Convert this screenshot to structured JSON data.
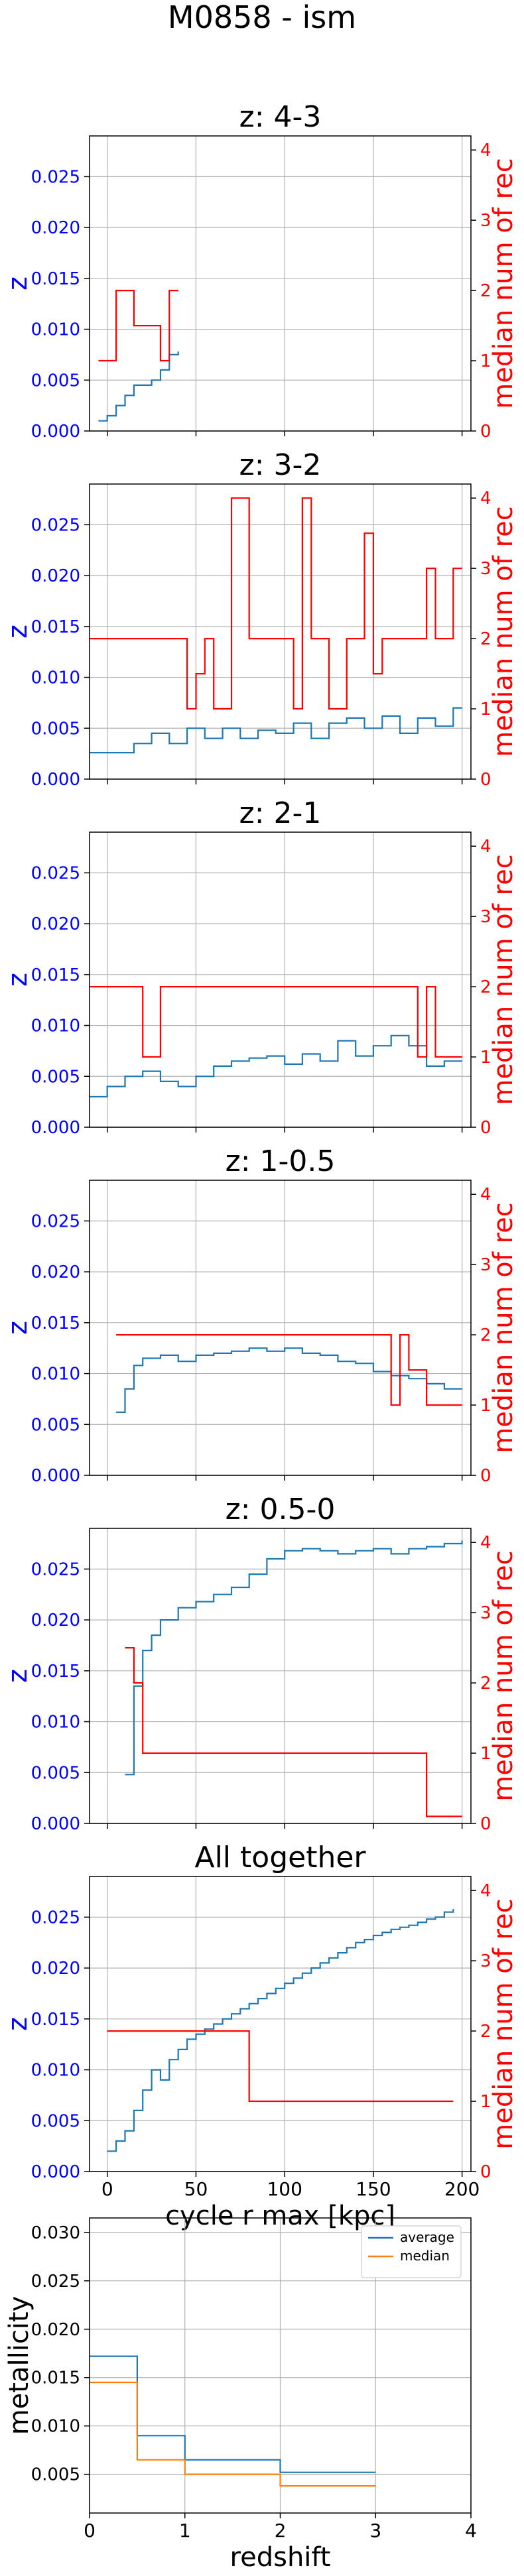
{
  "figure": {
    "title": "M0858 - ism"
  },
  "colors": {
    "left_axis": "#0000ff",
    "right_axis": "#ff0000",
    "average": "#1f77b4",
    "median": "#ff7f0e",
    "rec": "#ff0000",
    "grid": "#b0b0b0"
  },
  "chart_data": [
    {
      "id": "p1",
      "type": "line",
      "title": "z: 4-3",
      "ylabel": "z",
      "y2label": "median num of rec",
      "ylim": [
        0,
        0.029
      ],
      "y2lim": [
        0,
        4.2
      ],
      "xlim": [
        -10,
        205
      ],
      "yticks": [
        "0.000",
        "0.005",
        "0.010",
        "0.015",
        "0.020",
        "0.025"
      ],
      "y2ticks": [
        "0",
        "1",
        "2",
        "3",
        "4"
      ],
      "grid": true,
      "series": [
        {
          "kind": "z",
          "x": [
            -5,
            0,
            5,
            10,
            15,
            20,
            25,
            30,
            35,
            40
          ],
          "y": [
            0.001,
            0.0015,
            0.0025,
            0.0035,
            0.0045,
            0.0045,
            0.005,
            0.006,
            0.0075,
            0.0078
          ]
        },
        {
          "kind": "rec",
          "x": [
            -5,
            0,
            5,
            10,
            15,
            20,
            25,
            30,
            35,
            40
          ],
          "y": [
            1,
            1,
            2,
            2,
            1.5,
            1.5,
            1.5,
            1,
            2,
            2
          ]
        }
      ]
    },
    {
      "id": "p2",
      "type": "line",
      "title": "z: 3-2",
      "ylabel": "z",
      "y2label": "median num of rec",
      "ylim": [
        0,
        0.029
      ],
      "y2lim": [
        0,
        4.2
      ],
      "xlim": [
        -10,
        205
      ],
      "yticks": [
        "0.000",
        "0.005",
        "0.010",
        "0.015",
        "0.020",
        "0.025"
      ],
      "y2ticks": [
        "0",
        "1",
        "2",
        "3",
        "4"
      ],
      "grid": true,
      "series": [
        {
          "kind": "z",
          "x": [
            -10,
            5,
            15,
            25,
            35,
            45,
            55,
            65,
            75,
            85,
            95,
            105,
            115,
            125,
            135,
            145,
            155,
            165,
            175,
            185,
            195,
            200
          ],
          "y": [
            0.0026,
            0.0026,
            0.0035,
            0.0045,
            0.0035,
            0.005,
            0.004,
            0.005,
            0.004,
            0.0048,
            0.0045,
            0.0055,
            0.004,
            0.0055,
            0.006,
            0.005,
            0.0062,
            0.0045,
            0.006,
            0.0052,
            0.007,
            0.007
          ]
        },
        {
          "kind": "rec",
          "x": [
            -10,
            40,
            45,
            50,
            55,
            60,
            70,
            80,
            85,
            105,
            110,
            115,
            125,
            135,
            140,
            145,
            150,
            155,
            160,
            170,
            180,
            185,
            195,
            200
          ],
          "y": [
            2,
            2,
            1,
            1.5,
            2,
            1,
            4,
            2,
            2,
            1,
            4,
            2,
            1,
            2,
            2,
            3.5,
            1.5,
            2,
            2,
            2,
            3,
            2,
            3,
            3
          ]
        }
      ]
    },
    {
      "id": "p3",
      "type": "line",
      "title": "z: 2-1",
      "ylabel": "z",
      "y2label": "median num of rec",
      "ylim": [
        0,
        0.029
      ],
      "y2lim": [
        0,
        4.2
      ],
      "xlim": [
        -10,
        205
      ],
      "yticks": [
        "0.000",
        "0.005",
        "0.010",
        "0.015",
        "0.020",
        "0.025"
      ],
      "y2ticks": [
        "0",
        "1",
        "2",
        "3",
        "4"
      ],
      "grid": true,
      "series": [
        {
          "kind": "z",
          "x": [
            -10,
            0,
            10,
            20,
            30,
            40,
            50,
            60,
            70,
            80,
            90,
            100,
            110,
            120,
            130,
            140,
            150,
            160,
            170,
            180,
            190,
            200
          ],
          "y": [
            0.003,
            0.004,
            0.005,
            0.0055,
            0.0045,
            0.004,
            0.005,
            0.006,
            0.0065,
            0.0068,
            0.007,
            0.0062,
            0.0072,
            0.0065,
            0.0085,
            0.007,
            0.008,
            0.009,
            0.008,
            0.006,
            0.0065,
            0.0065
          ]
        },
        {
          "kind": "rec",
          "x": [
            -10,
            20,
            30,
            175,
            180,
            185,
            200
          ],
          "y": [
            2,
            1,
            2,
            1,
            2,
            1,
            1
          ]
        }
      ]
    },
    {
      "id": "p4",
      "type": "line",
      "title": "z: 1-0.5",
      "ylabel": "z",
      "y2label": "median num of rec",
      "ylim": [
        0,
        0.029
      ],
      "y2lim": [
        0,
        4.2
      ],
      "xlim": [
        -10,
        205
      ],
      "yticks": [
        "0.000",
        "0.005",
        "0.010",
        "0.015",
        "0.020",
        "0.025"
      ],
      "y2ticks": [
        "0",
        "1",
        "2",
        "3",
        "4"
      ],
      "grid": true,
      "series": [
        {
          "kind": "z",
          "x": [
            5,
            10,
            15,
            20,
            30,
            40,
            50,
            60,
            70,
            80,
            90,
            100,
            110,
            120,
            130,
            140,
            150,
            160,
            170,
            180,
            190,
            200
          ],
          "y": [
            0.0062,
            0.0085,
            0.0108,
            0.0115,
            0.0118,
            0.0112,
            0.0118,
            0.012,
            0.0122,
            0.0125,
            0.0122,
            0.0125,
            0.012,
            0.0118,
            0.0112,
            0.011,
            0.0102,
            0.0098,
            0.0095,
            0.009,
            0.0085,
            0.0085
          ]
        },
        {
          "kind": "rec",
          "x": [
            5,
            160,
            165,
            170,
            180,
            200
          ],
          "y": [
            2,
            1,
            2,
            1.5,
            1,
            1
          ]
        }
      ]
    },
    {
      "id": "p5",
      "type": "line",
      "title": "z: 0.5-0",
      "ylabel": "z",
      "y2label": "median num of rec",
      "ylim": [
        0,
        0.029
      ],
      "y2lim": [
        0,
        4.2
      ],
      "xlim": [
        -10,
        205
      ],
      "yticks": [
        "0.000",
        "0.005",
        "0.010",
        "0.015",
        "0.020",
        "0.025"
      ],
      "y2ticks": [
        "0",
        "1",
        "2",
        "3",
        "4"
      ],
      "grid": true,
      "series": [
        {
          "kind": "z",
          "x": [
            10,
            15,
            20,
            25,
            30,
            40,
            50,
            60,
            70,
            80,
            90,
            100,
            110,
            120,
            130,
            140,
            150,
            160,
            170,
            180,
            190,
            200
          ],
          "y": [
            0.0048,
            0.0135,
            0.017,
            0.0185,
            0.02,
            0.0212,
            0.0218,
            0.0225,
            0.0232,
            0.0245,
            0.026,
            0.0268,
            0.027,
            0.0268,
            0.0265,
            0.0268,
            0.027,
            0.0265,
            0.027,
            0.0272,
            0.0275,
            0.0278
          ]
        },
        {
          "kind": "rec",
          "x": [
            10,
            15,
            20,
            180,
            200
          ],
          "y": [
            2.5,
            2,
            1,
            0.1,
            0.1
          ]
        }
      ]
    },
    {
      "id": "p6",
      "type": "line",
      "title": "All together",
      "ylabel": "z",
      "y2label": "median num of rec",
      "xlabel": "cycle r max [kpc]",
      "ylim": [
        0,
        0.029
      ],
      "y2lim": [
        0,
        4.2
      ],
      "xlim": [
        -10,
        205
      ],
      "xticks": [
        "0",
        "50",
        "100",
        "150",
        "200"
      ],
      "yticks": [
        "0.000",
        "0.005",
        "0.010",
        "0.015",
        "0.020",
        "0.025"
      ],
      "y2ticks": [
        "0",
        "1",
        "2",
        "3",
        "4"
      ],
      "grid": true,
      "series": [
        {
          "kind": "z",
          "x": [
            0,
            5,
            10,
            15,
            20,
            25,
            30,
            35,
            40,
            45,
            50,
            55,
            60,
            65,
            70,
            75,
            80,
            85,
            90,
            95,
            100,
            105,
            110,
            115,
            120,
            125,
            130,
            135,
            140,
            145,
            150,
            155,
            160,
            165,
            170,
            175,
            180,
            185,
            190,
            195
          ],
          "y": [
            0.002,
            0.003,
            0.004,
            0.006,
            0.008,
            0.01,
            0.009,
            0.011,
            0.012,
            0.013,
            0.0135,
            0.014,
            0.0145,
            0.015,
            0.0155,
            0.016,
            0.0165,
            0.017,
            0.0175,
            0.018,
            0.0185,
            0.019,
            0.0195,
            0.02,
            0.0205,
            0.021,
            0.0215,
            0.022,
            0.0225,
            0.0228,
            0.0232,
            0.0235,
            0.0238,
            0.024,
            0.0242,
            0.0245,
            0.0248,
            0.025,
            0.0255,
            0.0258
          ]
        },
        {
          "kind": "rec",
          "x": [
            0,
            80,
            195
          ],
          "y": [
            2,
            1,
            1
          ]
        }
      ]
    },
    {
      "id": "p7",
      "type": "line",
      "ylabel": "metallicity",
      "xlabel": "redshift",
      "ylim": [
        0.001,
        0.0315
      ],
      "xlim": [
        0,
        4
      ],
      "xticks": [
        "0",
        "1",
        "2",
        "3",
        "4"
      ],
      "yticks": [
        "0.005",
        "0.010",
        "0.015",
        "0.020",
        "0.025",
        "0.030"
      ],
      "grid": true,
      "legend": "top-right",
      "series": [
        {
          "name": "average",
          "kind": "average",
          "x": [
            0,
            0.5,
            1,
            2,
            3
          ],
          "y": [
            0.0172,
            0.009,
            0.0065,
            0.0052,
            0.0052
          ]
        },
        {
          "name": "median",
          "kind": "median",
          "x": [
            0,
            0.5,
            1,
            2,
            3
          ],
          "y": [
            0.0145,
            0.0065,
            0.005,
            0.0038,
            0.0038
          ]
        }
      ]
    }
  ]
}
